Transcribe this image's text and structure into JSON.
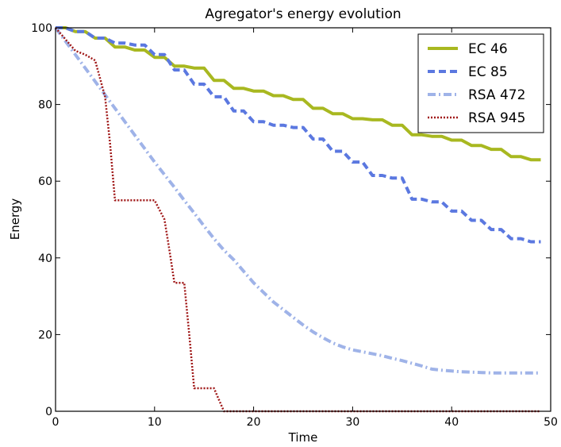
{
  "chart_data": {
    "type": "line",
    "title": "Agregator's energy evolution",
    "xlabel": "Time",
    "ylabel": "Energy",
    "xlim": [
      0,
      50
    ],
    "ylim": [
      0,
      100
    ],
    "xticks": [
      0,
      10,
      20,
      30,
      40,
      50
    ],
    "yticks": [
      0,
      20,
      40,
      60,
      80,
      100
    ],
    "grid": false,
    "legend_position": "top-right",
    "series": [
      {
        "name": "EC 46",
        "color": "#a8b820",
        "style": "solid",
        "x": [
          0,
          1,
          2,
          3,
          4,
          5,
          6,
          7,
          8,
          9,
          10,
          11,
          12,
          13,
          14,
          15,
          16,
          17,
          18,
          19,
          20,
          21,
          22,
          23,
          24,
          25,
          26,
          27,
          28,
          29,
          30,
          31,
          32,
          33,
          34,
          35,
          36,
          37,
          38,
          39,
          40,
          41,
          42,
          43,
          44,
          45,
          46,
          47,
          48,
          49
        ],
        "y": [
          100,
          100,
          99,
          99,
          97.3,
          97.3,
          95,
          95,
          94.2,
          94.2,
          92.3,
          92.3,
          90,
          90,
          89.5,
          89.5,
          86.3,
          86.3,
          84.2,
          84.2,
          83.5,
          83.5,
          82.3,
          82.3,
          81.3,
          81.3,
          79,
          79,
          77.6,
          77.6,
          76.3,
          76.3,
          76,
          76,
          74.6,
          74.6,
          72.1,
          72.1,
          71.7,
          71.7,
          70.7,
          70.7,
          69.3,
          69.3,
          68.3,
          68.3,
          66.4,
          66.4,
          65.6,
          65.6
        ]
      },
      {
        "name": "EC 85",
        "color": "#5b78e0",
        "style": "dashed",
        "x": [
          0,
          1,
          2,
          3,
          4,
          5,
          6,
          7,
          8,
          9,
          10,
          11,
          12,
          13,
          14,
          15,
          16,
          17,
          18,
          19,
          20,
          21,
          22,
          23,
          24,
          25,
          26,
          27,
          28,
          29,
          30,
          31,
          32,
          33,
          34,
          35,
          36,
          37,
          38,
          39,
          40,
          41,
          42,
          43,
          44,
          45,
          46,
          47,
          48,
          49
        ],
        "y": [
          100,
          100,
          99,
          99,
          97.3,
          97.3,
          96,
          96,
          95.5,
          95.5,
          93,
          93,
          89,
          89,
          85.3,
          85.3,
          82,
          82,
          78.3,
          78.3,
          75.5,
          75.5,
          74.6,
          74.6,
          74,
          74,
          71,
          71,
          67.8,
          67.8,
          65,
          65,
          61.5,
          61.5,
          60.8,
          60.8,
          55.3,
          55.3,
          54.6,
          54.6,
          52.2,
          52.2,
          49.8,
          49.8,
          47.4,
          47.4,
          45,
          45,
          44.2,
          44.2
        ]
      },
      {
        "name": "RSA 472",
        "color": "#9fb3e8",
        "style": "dashdot",
        "x": [
          0,
          1,
          2,
          3,
          4,
          5,
          6,
          7,
          8,
          9,
          10,
          11,
          12,
          13,
          14,
          15,
          16,
          17,
          18,
          19,
          20,
          21,
          22,
          23,
          24,
          25,
          26,
          27,
          28,
          29,
          30,
          31,
          32,
          33,
          34,
          35,
          36,
          37,
          38,
          39,
          40,
          41,
          42,
          43,
          44,
          45,
          46,
          47,
          48,
          49
        ],
        "y": [
          100,
          96.5,
          93,
          89.5,
          86,
          82.5,
          79,
          75.5,
          72,
          68.5,
          65,
          61.7,
          58.4,
          55,
          51.7,
          48.3,
          45,
          42,
          39.5,
          36.5,
          33.5,
          31,
          28.5,
          26.5,
          24.5,
          22.5,
          20.7,
          19.2,
          17.8,
          16.8,
          16,
          15.5,
          15,
          14.5,
          13.8,
          13.2,
          12.5,
          11.8,
          11,
          10.7,
          10.5,
          10.3,
          10.2,
          10.1,
          10,
          10,
          10,
          10,
          10,
          10
        ]
      },
      {
        "name": "RSA 945",
        "color": "#a01818",
        "style": "dotted",
        "x": [
          0,
          1,
          2,
          3,
          4,
          5,
          5.5,
          6,
          7,
          8,
          9,
          10,
          11,
          11.5,
          12,
          13,
          13.5,
          14,
          15,
          16,
          16.5,
          17,
          18,
          19,
          20,
          25,
          30,
          35,
          40,
          45,
          49
        ],
        "y": [
          100,
          97,
          94,
          93,
          91.5,
          82,
          70,
          55,
          55,
          55,
          55,
          55,
          50,
          42,
          33.5,
          33.5,
          20,
          6,
          6,
          6,
          3,
          0,
          0,
          0,
          0,
          0,
          0,
          0,
          0,
          0,
          0
        ]
      }
    ]
  }
}
